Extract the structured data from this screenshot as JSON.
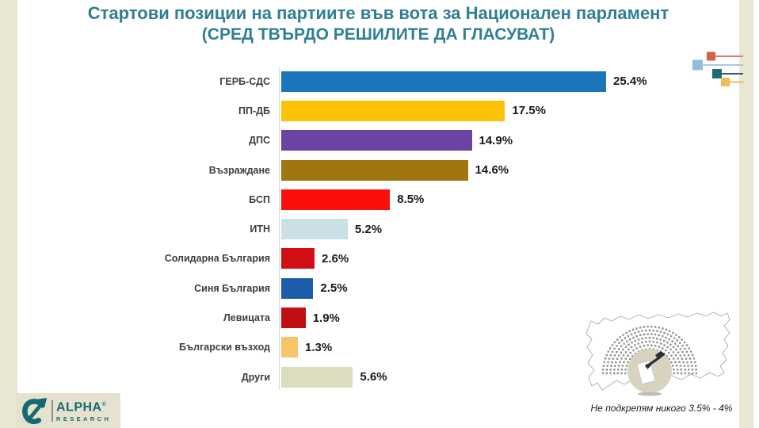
{
  "title": {
    "line1": "Стартови позиции на партиите във вота за Национален парламент",
    "line2": "(СРЕД ТВЪРДО РЕШИЛИТЕ ДА ГЛАСУВАТ)"
  },
  "chart_data": {
    "type": "bar",
    "orientation": "horizontal",
    "title": "Стартови позиции на партиите във вота за Национален парламент (СРЕД ТВЪРДО РЕШИЛИТЕ ДА ГЛАСУВАТ)",
    "categories": [
      "ГЕРБ-СДС",
      "ПП-ДБ",
      "ДПС",
      "Възраждане",
      "БСП",
      "ИТН",
      "Солидарна България",
      "Синя България",
      "Левицата",
      "Български възход",
      "Други"
    ],
    "values": [
      25.4,
      17.5,
      14.9,
      14.6,
      8.5,
      5.2,
      2.6,
      2.5,
      1.9,
      1.3,
      5.6
    ],
    "value_labels": [
      "25.4%",
      "17.5%",
      "14.9%",
      "14.6%",
      "8.5%",
      "5.2%",
      "2.6%",
      "2.5%",
      "1.9%",
      "1.3%",
      "5.6%"
    ],
    "bar_colors": [
      "#1b75bb",
      "#fcc206",
      "#6c42a5",
      "#a0760f",
      "#fb0f0b",
      "#c9e0e4",
      "#d20f15",
      "#1b5cab",
      "#c20e13",
      "#f8c468",
      "#dcdcc0"
    ],
    "unit": "%",
    "xlim": [
      0,
      27
    ],
    "grid": false,
    "legend": false,
    "value_label_position": "end-of-bar"
  },
  "footnote": "Не подкрепям никого 3.5% - 4%",
  "logo": {
    "name": "ALPHA",
    "reg": "®",
    "sub": "RESEARCH"
  },
  "decoration": {
    "squares": [
      {
        "color": "#d9604a",
        "line_color": "#cf8476"
      },
      {
        "color": "#8cc0d8",
        "line_color": "#a5cbdd"
      },
      {
        "color": "#206b7a",
        "line_color": "#2b5a76"
      },
      {
        "color": "#f0bc55",
        "line_color": "#e9bb5e"
      }
    ]
  },
  "colors": {
    "background": "#ffffff",
    "side_stripe": "#e9e6d3",
    "title_text": "#2f7f92",
    "logo_teal": "#156a72",
    "axis_line": "#d9d9d9",
    "category_label": "#3d3d3d",
    "value_label": "#1a1a1a",
    "seat_dot": "#8f8f8f",
    "map_outline": "#a9a9a9"
  }
}
